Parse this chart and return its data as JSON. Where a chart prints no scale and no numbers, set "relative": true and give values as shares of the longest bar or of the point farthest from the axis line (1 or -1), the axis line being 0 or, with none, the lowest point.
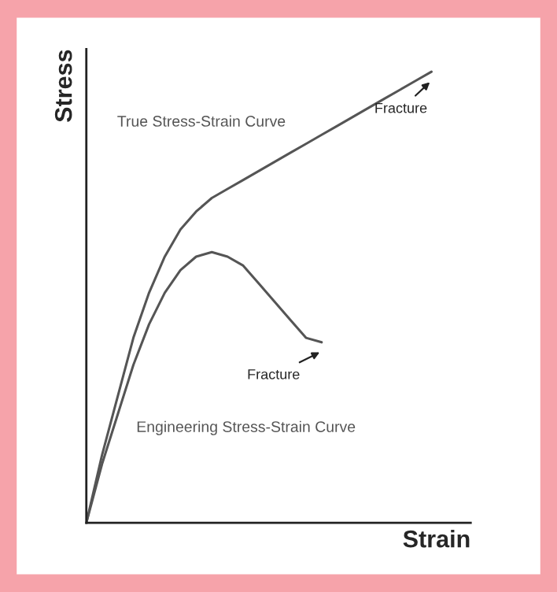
{
  "chart_data": {
    "type": "line",
    "relative": true,
    "xlabel": "Strain",
    "ylabel": "Stress",
    "categories": [
      null,
      null,
      null,
      null,
      null,
      null,
      null,
      null,
      null,
      null,
      null,
      null,
      null,
      null,
      null,
      null,
      null,
      null,
      null,
      null,
      null,
      null,
      null
    ],
    "series": [
      {
        "name": "True Stress-Strain Curve",
        "color": "#555555",
        "values": [
          0,
          0.15,
          0.28,
          0.41,
          0.51,
          0.59,
          0.65,
          0.69,
          0.72,
          0.74,
          0.76,
          0.78,
          0.8,
          0.82,
          0.84,
          0.86,
          0.88,
          0.9,
          0.92,
          0.94,
          0.96,
          0.98,
          1
        ]
      },
      {
        "name": "Engineering Stress-Strain Curve",
        "color": "#555555",
        "values": [
          0,
          0.13,
          0.24,
          0.35,
          0.44,
          0.51,
          0.56,
          0.59,
          0.6,
          0.59,
          0.57,
          0.53,
          0.49,
          0.45,
          0.41,
          0.4,
          null,
          null,
          null,
          null,
          null,
          null,
          null
        ]
      }
    ],
    "annotations": [
      "Fracture",
      "Fracture"
    ],
    "legend": false,
    "marker": "none",
    "line_style": "solid"
  }
}
